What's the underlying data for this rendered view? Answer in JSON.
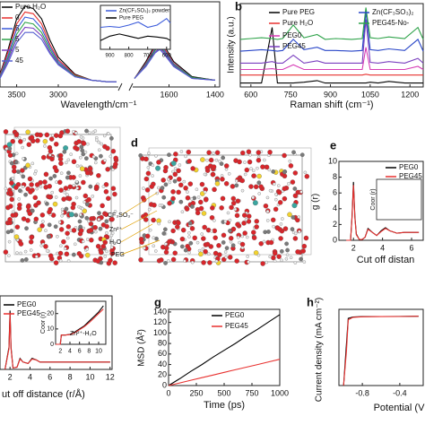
{
  "chart_data": [
    {
      "type": "line",
      "x_label": "Wavelength/cm⁻¹",
      "x": [
        3700,
        3600,
        3500,
        3400,
        3300,
        3200,
        3100,
        3000,
        2800,
        2600,
        2400,
        2300,
        1750,
        1700,
        1660,
        1640,
        1620,
        1580,
        1500,
        1400
      ],
      "x_segments": [
        [
          3700,
          2300
        ],
        [
          1750,
          1380
        ]
      ],
      "xticks": [
        3500,
        3000,
        1600,
        1400
      ],
      "ylim": [
        0,
        1
      ],
      "series": [
        {
          "name": "Pure H₂O",
          "color": "#000000",
          "values": [
            0.15,
            0.45,
            0.8,
            0.95,
            0.92,
            0.8,
            0.55,
            0.35,
            0.15,
            0.08,
            0.06,
            0.06,
            0.1,
            0.3,
            0.5,
            0.55,
            0.48,
            0.3,
            0.12,
            0.08
          ]
        },
        {
          "name": "0",
          "color": "#e8312f",
          "values": [
            0.14,
            0.42,
            0.74,
            0.88,
            0.86,
            0.74,
            0.5,
            0.32,
            0.14,
            0.08,
            0.06,
            0.06,
            0.1,
            0.28,
            0.47,
            0.52,
            0.45,
            0.28,
            0.11,
            0.08
          ]
        },
        {
          "name": "5",
          "color": "#3b5bdb",
          "values": [
            0.13,
            0.38,
            0.68,
            0.82,
            0.8,
            0.69,
            0.47,
            0.3,
            0.13,
            0.08,
            0.06,
            0.06,
            0.1,
            0.27,
            0.45,
            0.5,
            0.43,
            0.27,
            0.11,
            0.08
          ]
        },
        {
          "name": "5",
          "color": "#2fa34a",
          "values": [
            0.12,
            0.35,
            0.62,
            0.76,
            0.74,
            0.64,
            0.44,
            0.28,
            0.13,
            0.08,
            0.06,
            0.06,
            0.1,
            0.26,
            0.43,
            0.48,
            0.41,
            0.26,
            0.11,
            0.08
          ]
        },
        {
          "name": "5",
          "color": "#7a3fbf",
          "values": [
            0.11,
            0.32,
            0.57,
            0.7,
            0.69,
            0.6,
            0.41,
            0.27,
            0.12,
            0.08,
            0.06,
            0.06,
            0.1,
            0.25,
            0.41,
            0.46,
            0.4,
            0.25,
            0.1,
            0.08
          ]
        },
        {
          "name": "45",
          "color": "#555fd0",
          "values": [
            0.1,
            0.29,
            0.52,
            0.64,
            0.64,
            0.56,
            0.39,
            0.26,
            0.12,
            0.08,
            0.06,
            0.06,
            0.1,
            0.24,
            0.4,
            0.44,
            0.38,
            0.24,
            0.1,
            0.08
          ]
        }
      ]
    },
    {
      "type": "line",
      "x": [
        950,
        900,
        850,
        800,
        750,
        700,
        650,
        600,
        580
      ],
      "xlim": [
        950,
        580
      ],
      "xticks": [
        900,
        800,
        700,
        600
      ],
      "ylim": [
        0,
        1
      ],
      "series": [
        {
          "name": "Zn(CF₃SO₃)₂ powder",
          "color": "#3b5bdb",
          "values": [
            0.5,
            0.52,
            0.5,
            0.55,
            0.62,
            0.5,
            0.55,
            0.7,
            0.6
          ]
        },
        {
          "name": "Pure PEG",
          "color": "#000000",
          "values": [
            0.2,
            0.3,
            0.35,
            0.3,
            0.25,
            0.3,
            0.28,
            0.25,
            0.2
          ]
        }
      ]
    },
    {
      "type": "line",
      "panel_label": "b",
      "x_label": "Raman shift (cm⁻¹)",
      "y_label": "Intensity (a.u.)",
      "x": [
        560,
        600,
        640,
        680,
        700,
        720,
        760,
        800,
        850,
        880,
        920,
        980,
        1020,
        1034,
        1050,
        1080,
        1120,
        1180,
        1230,
        1250
      ],
      "xlim": [
        560,
        1250
      ],
      "xticks": [
        600,
        750,
        900,
        1050,
        1200
      ],
      "ylim": [
        0,
        1.05
      ],
      "series": [
        {
          "name": "Pure PEG",
          "color": "#000000",
          "values": [
            0.05,
            0.05,
            0.05,
            0.75,
            0.05,
            0.05,
            0.05,
            0.06,
            0.08,
            0.05,
            0.05,
            0.05,
            0.05,
            0.05,
            0.06,
            0.05,
            0.07,
            0.05,
            0.05,
            0.05
          ]
        },
        {
          "name": "Pure H₂O",
          "color": "#e8312f",
          "values": [
            0.15,
            0.15,
            0.15,
            0.15,
            0.15,
            0.15,
            0.15,
            0.15,
            0.15,
            0.15,
            0.15,
            0.15,
            0.15,
            0.16,
            0.15,
            0.15,
            0.15,
            0.15,
            0.15,
            0.15
          ]
        },
        {
          "name": "PEG0",
          "color": "#d63bb5",
          "values": [
            0.22,
            0.22,
            0.22,
            0.23,
            0.22,
            0.22,
            0.28,
            0.22,
            0.22,
            0.22,
            0.22,
            0.22,
            0.22,
            0.5,
            0.22,
            0.22,
            0.22,
            0.22,
            0.26,
            0.22
          ]
        },
        {
          "name": "PEG45",
          "color": "#7a3fbf",
          "values": [
            0.3,
            0.3,
            0.3,
            0.32,
            0.3,
            0.3,
            0.4,
            0.3,
            0.33,
            0.3,
            0.3,
            0.3,
            0.3,
            0.85,
            0.31,
            0.3,
            0.32,
            0.3,
            0.36,
            0.3
          ]
        },
        {
          "name": "Zn(CF₃SO₃)₂",
          "color": "#2845c8",
          "values": [
            0.45,
            0.46,
            0.47,
            0.46,
            0.45,
            0.46,
            0.6,
            0.47,
            0.5,
            0.46,
            0.46,
            0.45,
            0.46,
            0.95,
            0.47,
            0.46,
            0.48,
            0.46,
            0.6,
            0.45
          ]
        },
        {
          "name": "PEG45-No-",
          "color": "#2fa34a",
          "values": [
            0.6,
            0.61,
            0.62,
            0.61,
            0.6,
            0.61,
            0.78,
            0.62,
            0.66,
            0.6,
            0.61,
            0.6,
            0.61,
            1.0,
            0.62,
            0.61,
            0.63,
            0.61,
            0.75,
            0.6
          ]
        }
      ]
    },
    {
      "type": "line",
      "panel_label": "e",
      "x_label": "Cut off distan",
      "y_label": "g (r)",
      "inset_y_label": "Coor (r)",
      "x": [
        1.5,
        1.8,
        1.9,
        2.0,
        2.1,
        2.2,
        2.4,
        2.6,
        2.8,
        3.0,
        3.3,
        3.6,
        3.9,
        4.2,
        4.5,
        5,
        5.5,
        6,
        6.5
      ],
      "xlim": [
        1,
        6.8
      ],
      "xticks": [
        2,
        4,
        6
      ],
      "ylim": [
        0,
        10
      ],
      "yticks": [
        0,
        2,
        4,
        6,
        8,
        10
      ],
      "series": [
        {
          "name": "PEG0",
          "color": "#000000",
          "values": [
            0,
            0,
            3,
            7.4,
            3,
            0.8,
            0.1,
            0.1,
            0.4,
            1.5,
            1.0,
            0.6,
            1.2,
            1.6,
            1.2,
            0.9,
            1.0,
            1.0,
            1.0
          ]
        },
        {
          "name": "PEG45",
          "color": "#e8312f",
          "values": [
            0,
            0,
            2.8,
            7,
            2.8,
            0.7,
            0.1,
            0.1,
            0.4,
            1.4,
            1.0,
            0.6,
            1.1,
            1.5,
            1.2,
            0.9,
            1.0,
            1.0,
            1.0
          ]
        }
      ]
    },
    {
      "type": "line",
      "x_label": "ut off distance (r/Å)",
      "x": [
        1.5,
        1.9,
        2.0,
        2.1,
        2.3,
        2.7,
        3.0,
        3.3,
        3.8,
        4.2,
        4.6,
        5,
        6,
        7,
        8,
        9,
        10,
        11,
        12
      ],
      "xlim": [
        1,
        12.2
      ],
      "xticks": [
        2,
        4,
        6,
        8,
        10,
        12
      ],
      "ylim": [
        0,
        10
      ],
      "series": [
        {
          "name": "PEG0",
          "color": "#000000",
          "values": [
            0,
            3,
            8,
            3,
            0.2,
            0.3,
            1.5,
            1.0,
            0.8,
            1.5,
            1.3,
            1.0,
            1.0,
            1.0,
            1.0,
            1,
            1,
            1,
            1
          ]
        },
        {
          "name": "PEG45",
          "color": "#e8312f",
          "values": [
            0,
            2.8,
            7.6,
            2.8,
            0.2,
            0.3,
            1.4,
            1.0,
            0.8,
            1.4,
            1.3,
            1.0,
            1.0,
            1.0,
            1.0,
            1,
            1,
            1,
            1
          ]
        }
      ]
    },
    {
      "type": "line",
      "y_label": "Coor (r)",
      "annotation": "Zn²⁺-H₂O",
      "x": [
        1,
        2,
        2.2,
        3,
        4,
        5,
        6,
        7,
        8,
        9,
        10,
        11
      ],
      "xlim": [
        1,
        11.5
      ],
      "xticks": [
        2,
        4,
        6,
        8,
        10
      ],
      "ylim": [
        0,
        28
      ],
      "yticks": [
        0,
        10,
        20
      ],
      "series": [
        {
          "color": "#000000",
          "values": [
            0,
            0,
            6,
            6,
            6.5,
            8,
            10,
            12,
            15,
            18,
            21,
            25
          ]
        },
        {
          "color": "#e8312f",
          "values": [
            0,
            0,
            6,
            6,
            6.3,
            7.5,
            9.5,
            11.5,
            14,
            17,
            20,
            23
          ]
        }
      ]
    },
    {
      "type": "line",
      "panel_label": "g",
      "x_label": "Time (ps)",
      "y_label": "MSD (Å²)",
      "x": [
        0,
        100,
        200,
        300,
        400,
        500,
        600,
        700,
        800,
        900,
        1000
      ],
      "xlim": [
        0,
        1000
      ],
      "xticks": [
        0,
        250,
        500,
        750,
        1000
      ],
      "ylim": [
        0,
        145
      ],
      "yticks": [
        0,
        20,
        40,
        60,
        80,
        100,
        120,
        140
      ],
      "series": [
        {
          "name": "PEG0",
          "color": "#000000",
          "values": [
            0,
            13,
            27,
            40,
            54,
            67,
            80,
            94,
            107,
            121,
            135
          ]
        },
        {
          "name": "PEG45",
          "color": "#e8312f",
          "values": [
            0,
            5,
            10,
            15,
            20,
            25,
            30,
            35,
            40,
            45,
            50
          ]
        }
      ]
    },
    {
      "type": "line",
      "panel_label": "h",
      "x_label": "Potential (V",
      "y_label": "Current density (mA cm⁻²)",
      "x": [
        -1.0,
        -0.97,
        -0.95,
        -0.9,
        -0.8,
        -0.6,
        -0.4,
        -0.2
      ],
      "xlim": [
        -1.05,
        -0.15
      ],
      "xticks": [
        -0.8,
        -0.4
      ],
      "ylim": [
        -10,
        1
      ],
      "series": [
        {
          "color": "#000000",
          "values": [
            -10,
            -4,
            -0.3,
            -0.1,
            -0.05,
            -0.03,
            -0.02,
            0
          ]
        },
        {
          "color": "#e8312f",
          "values": [
            -10,
            -5,
            -0.5,
            -0.15,
            -0.08,
            -0.05,
            -0.03,
            0
          ]
        }
      ]
    }
  ],
  "panel_d": {
    "label": "d",
    "annotations": [
      "CF₃SO₃⁻",
      "Zn²⁺",
      "H₂O",
      "PEG"
    ]
  }
}
